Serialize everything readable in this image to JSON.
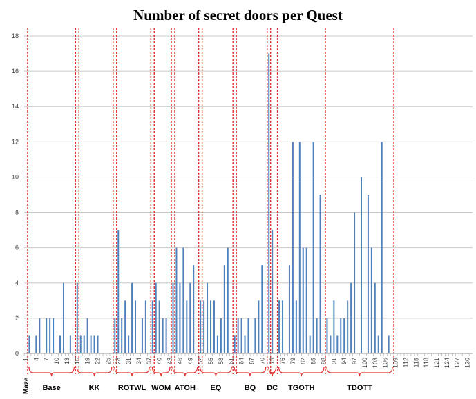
{
  "chart_data": {
    "type": "bar",
    "title": "Number of secret doors per Quest",
    "xlabel": "Maze",
    "ylabel": "",
    "ylim": [
      0,
      18
    ],
    "yticks": [
      0,
      2,
      4,
      6,
      8,
      10,
      12,
      14,
      16,
      18
    ],
    "xlim": [
      1,
      131
    ],
    "xticks": [
      1,
      4,
      7,
      10,
      13,
      16,
      19,
      22,
      25,
      28,
      31,
      34,
      37,
      40,
      43,
      46,
      49,
      52,
      55,
      58,
      61,
      64,
      67,
      70,
      73,
      76,
      79,
      82,
      85,
      88,
      91,
      94,
      97,
      100,
      103,
      106,
      109,
      112,
      115,
      118,
      121,
      124,
      127,
      130
    ],
    "grid": true,
    "series": [
      {
        "color": "#4f81bd",
        "points": [
          [
            2,
            1
          ],
          [
            4,
            1
          ],
          [
            5,
            2
          ],
          [
            7,
            2
          ],
          [
            8,
            2
          ],
          [
            9,
            2
          ],
          [
            11,
            1
          ],
          [
            12,
            4
          ],
          [
            14,
            1
          ],
          [
            16,
            4
          ],
          [
            17,
            1
          ],
          [
            18,
            1
          ],
          [
            19,
            2
          ],
          [
            20,
            1
          ],
          [
            21,
            1
          ],
          [
            22,
            1
          ],
          [
            27,
            2
          ],
          [
            28,
            7
          ],
          [
            29,
            2
          ],
          [
            30,
            3
          ],
          [
            31,
            1
          ],
          [
            32,
            4
          ],
          [
            33,
            3
          ],
          [
            35,
            2
          ],
          [
            36,
            3
          ],
          [
            38,
            3
          ],
          [
            39,
            4
          ],
          [
            40,
            3
          ],
          [
            41,
            2
          ],
          [
            42,
            2
          ],
          [
            44,
            4
          ],
          [
            45,
            6
          ],
          [
            46,
            4
          ],
          [
            47,
            6
          ],
          [
            48,
            3
          ],
          [
            49,
            4
          ],
          [
            50,
            5
          ],
          [
            52,
            3
          ],
          [
            53,
            3
          ],
          [
            54,
            4
          ],
          [
            55,
            3
          ],
          [
            56,
            3
          ],
          [
            57,
            1
          ],
          [
            58,
            2
          ],
          [
            59,
            5
          ],
          [
            60,
            6
          ],
          [
            62,
            1
          ],
          [
            63,
            2
          ],
          [
            64,
            2
          ],
          [
            65,
            1
          ],
          [
            66,
            2
          ],
          [
            68,
            2
          ],
          [
            69,
            3
          ],
          [
            70,
            5
          ],
          [
            72,
            17
          ],
          [
            73,
            7
          ],
          [
            75,
            3
          ],
          [
            76,
            3
          ],
          [
            78,
            5
          ],
          [
            79,
            12
          ],
          [
            80,
            3
          ],
          [
            81,
            12
          ],
          [
            82,
            6
          ],
          [
            83,
            6
          ],
          [
            84,
            1
          ],
          [
            85,
            12
          ],
          [
            86,
            2
          ],
          [
            87,
            9
          ],
          [
            89,
            2
          ],
          [
            90,
            1
          ],
          [
            91,
            3
          ],
          [
            92,
            1
          ],
          [
            93,
            2
          ],
          [
            94,
            2
          ],
          [
            95,
            3
          ],
          [
            96,
            4
          ],
          [
            97,
            8
          ],
          [
            99,
            10
          ],
          [
            101,
            9
          ],
          [
            102,
            6
          ],
          [
            103,
            4
          ],
          [
            104,
            1
          ],
          [
            105,
            12
          ],
          [
            107,
            1
          ]
        ]
      }
    ],
    "groups": [
      {
        "name": "Base",
        "from": 1,
        "to": 15
      },
      {
        "name": "KK",
        "from": 15,
        "to": 26
      },
      {
        "name": "ROTWL",
        "from": 26,
        "to": 37
      },
      {
        "name": "WOM",
        "from": 37,
        "to": 43
      },
      {
        "name": "ATOH",
        "from": 43,
        "to": 51
      },
      {
        "name": "EQ",
        "from": 51,
        "to": 61
      },
      {
        "name": "BQ",
        "from": 61,
        "to": 71
      },
      {
        "name": "DC",
        "from": 71,
        "to": 74
      },
      {
        "name": "TGOTH",
        "from": 74,
        "to": 88
      },
      {
        "name": "TDOTT",
        "from": 88,
        "to": 108
      }
    ],
    "group_separators": [
      1,
      15,
      16,
      26,
      27,
      37,
      38,
      43,
      44,
      51,
      52,
      61,
      62,
      71,
      72,
      74,
      88,
      108
    ],
    "separator_color": "#e03030",
    "grid_color": "#c8c8c8"
  }
}
